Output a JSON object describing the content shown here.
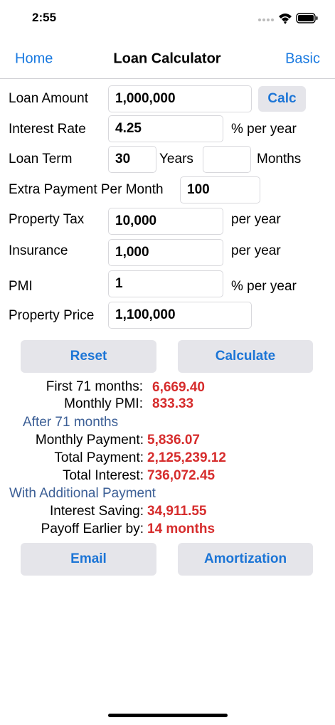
{
  "status_bar": {
    "time": "2:55"
  },
  "nav": {
    "back": "Home",
    "title": "Loan Calculator",
    "right": "Basic"
  },
  "form": {
    "loan_amount": {
      "label": "Loan Amount",
      "value": "1,000,000",
      "button": "Calc"
    },
    "interest_rate": {
      "label": "Interest Rate",
      "value": "4.25",
      "unit": "% per year"
    },
    "loan_term": {
      "label": "Loan Term",
      "years": "30",
      "years_unit": "Years",
      "months_unit": "Months"
    },
    "extra_payment": {
      "label": "Extra Payment Per Month",
      "value": "100"
    },
    "property_tax": {
      "label": "Property Tax",
      "value": "10,000",
      "unit": "per year"
    },
    "insurance": {
      "label": "Insurance",
      "value": "1,000",
      "unit": "per year"
    },
    "pmi": {
      "label": "PMI",
      "value": "1",
      "unit": "% per year"
    },
    "property_price": {
      "label": "Property Price",
      "value": "1,100,000"
    }
  },
  "buttons": {
    "reset": "Reset",
    "calculate": "Calculate",
    "email": "Email",
    "amortization": "Amortization"
  },
  "results": {
    "first": {
      "label": "First 71 months:",
      "value": "6,669.40"
    },
    "monthly_pmi": {
      "label": "Monthly PMI:",
      "value": "833.33"
    },
    "after_header": "After 71 months",
    "monthly_payment": {
      "label": "Monthly Payment:",
      "value": "5,836.07"
    },
    "total_payment": {
      "label": "Total Payment:",
      "value": "2,125,239.12"
    },
    "total_interest": {
      "label": "Total Interest:",
      "value": "736,072.45"
    },
    "additional_header": "With Additional Payment",
    "interest_saving": {
      "label": "Interest Saving:",
      "value": "34,911.55"
    },
    "payoff_earlier": {
      "label": "Payoff Earlier by:",
      "value": "14 months"
    }
  }
}
